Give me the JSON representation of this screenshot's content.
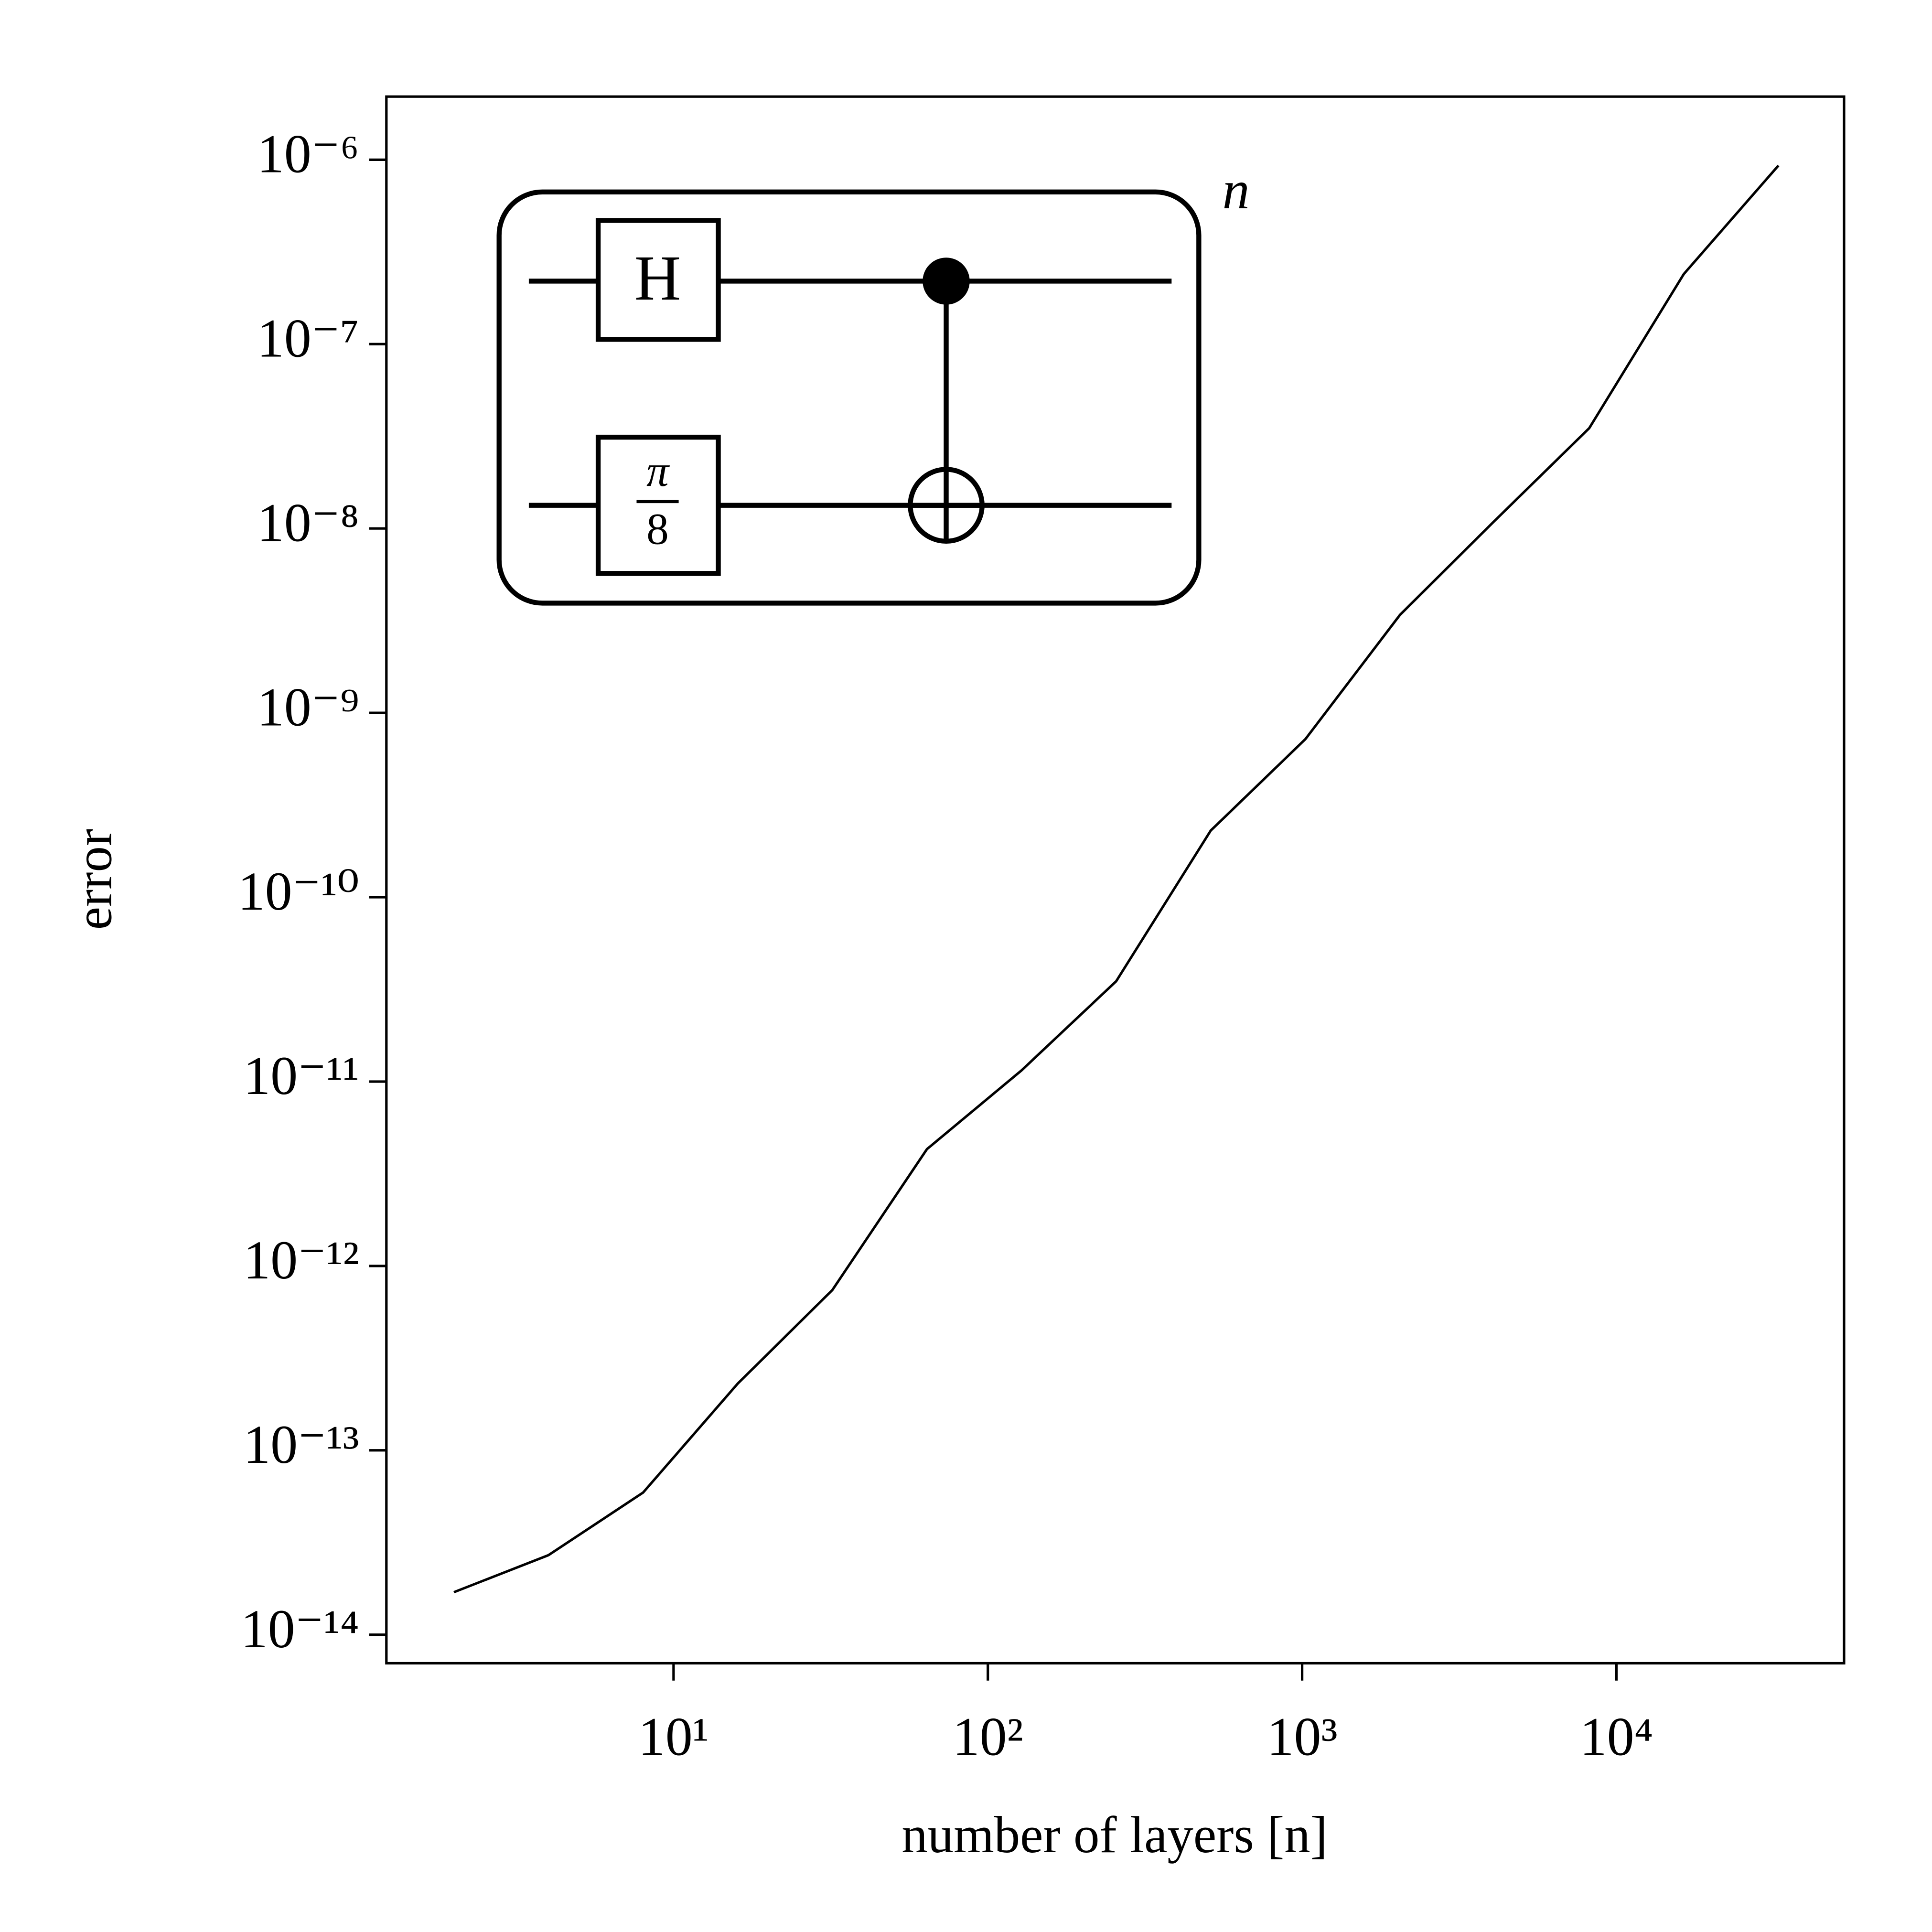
{
  "chart_data": {
    "type": "line",
    "xlabel": "number of layers [n]",
    "ylabel": "error",
    "x": [
      2,
      4,
      8,
      16,
      32,
      64,
      128,
      256,
      512,
      1024,
      2048,
      4096,
      8192,
      16384,
      32768
    ],
    "values": [
      1.7e-14,
      2.7e-14,
      5.9e-14,
      2.3e-13,
      7.4e-13,
      4.3e-12,
      1.15e-11,
      3.5e-11,
      2.3e-10,
      7.2e-10,
      3.4e-09,
      1.1e-08,
      3.5e-08,
      2.4e-07,
      9.3e-07
    ],
    "color": "#000000",
    "xlog": true,
    "ylog": true,
    "xlim": [
      1.22,
      53000
    ],
    "ylim": [
      7e-15,
      2.2e-06
    ],
    "xticks": [
      {
        "value": 10,
        "label": "10¹"
      },
      {
        "value": 100,
        "label": "10²"
      },
      {
        "value": 1000,
        "label": "10³"
      },
      {
        "value": 10000,
        "label": "10⁴"
      }
    ],
    "yticks": [
      {
        "value": 1e-14,
        "label": "10⁻¹⁴"
      },
      {
        "value": 1e-13,
        "label": "10⁻¹³"
      },
      {
        "value": 1e-12,
        "label": "10⁻¹²"
      },
      {
        "value": 1e-11,
        "label": "10⁻¹¹"
      },
      {
        "value": 1e-10,
        "label": "10⁻¹⁰"
      },
      {
        "value": 1e-09,
        "label": "10⁻⁹"
      },
      {
        "value": 1e-08,
        "label": "10⁻⁸"
      },
      {
        "value": 1e-07,
        "label": "10⁻⁷"
      },
      {
        "value": 1e-06,
        "label": "10⁻⁶"
      }
    ],
    "grid": false,
    "inset": {
      "gate_top": "H",
      "gate_bottom_numerator": "π",
      "gate_bottom_denominator": "8",
      "repeat_label": "n"
    }
  }
}
